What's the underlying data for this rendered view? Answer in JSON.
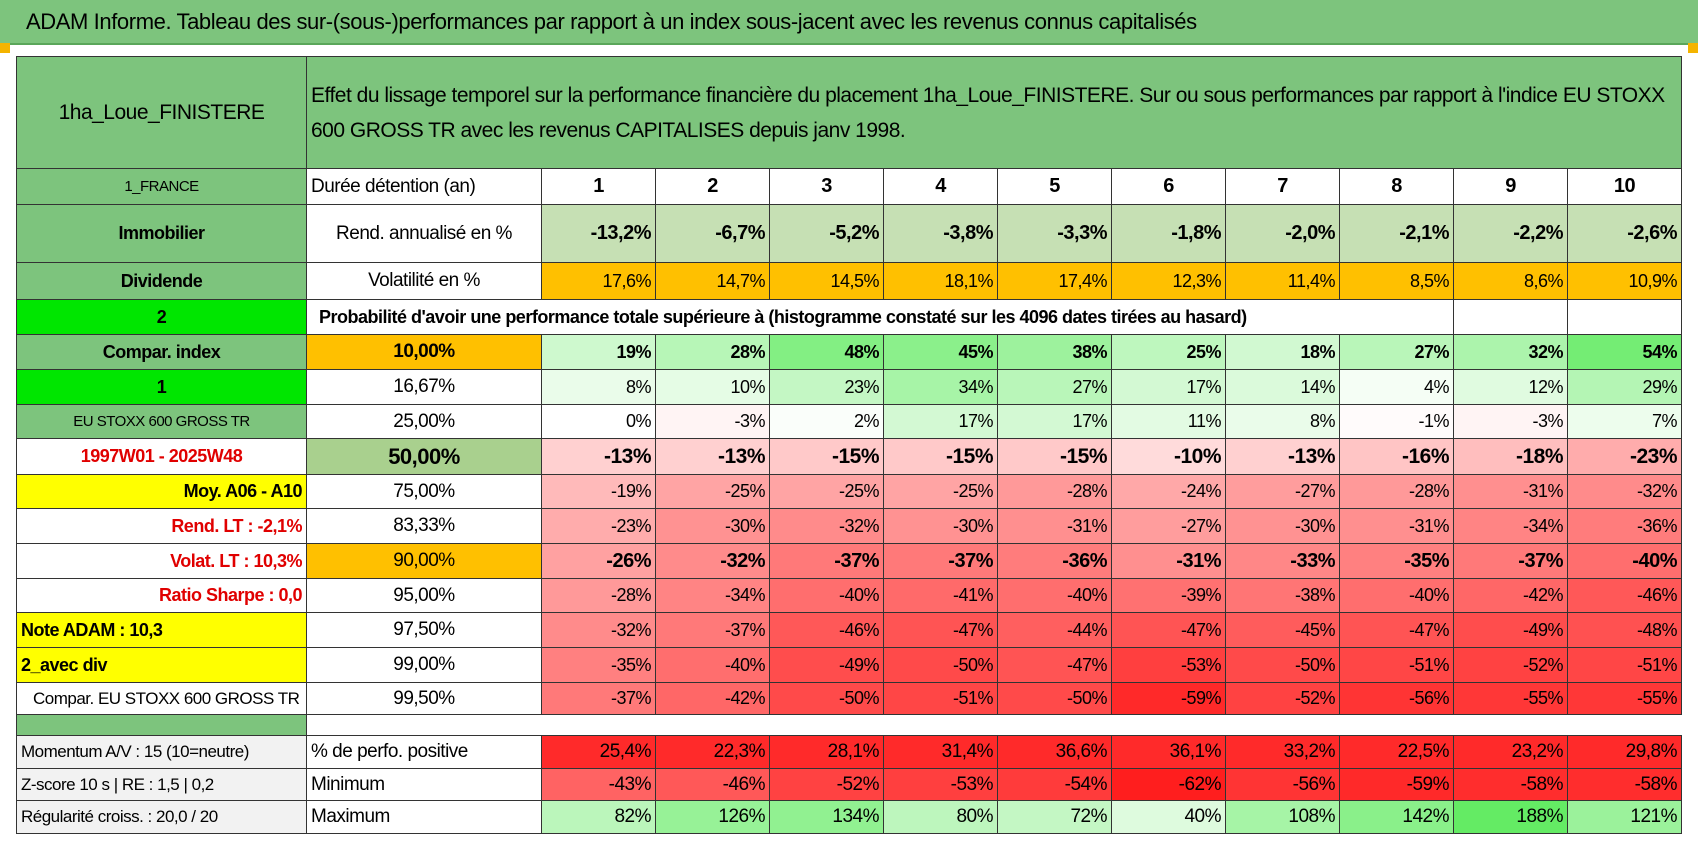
{
  "title": "ADAM Informe. Tableau des sur-(sous-)performances par rapport à un index sous-jacent avec les revenus connus capitalisés",
  "header": {
    "name": "1ha_Loue_FINISTERE",
    "description": "Effet du lissage temporel sur la performance financière du placement 1ha_Loue_FINISTERE. Sur ou sous performances par rapport à l'indice EU STOXX 600 GROSS TR avec les revenus CAPITALISES depuis janv 1998."
  },
  "rows": [
    {
      "left": "1_FRANCE",
      "label": "Durée détention (an)",
      "cells": [
        "1",
        "2",
        "3",
        "4",
        "5",
        "6",
        "7",
        "8",
        "9",
        "10"
      ]
    },
    {
      "left": "Immobilier",
      "label": "Rend. annualisé en %",
      "cells": [
        "-13,2%",
        "-6,7%",
        "-5,2%",
        "-3,8%",
        "-3,3%",
        "-1,8%",
        "-2,0%",
        "-2,1%",
        "-2,2%",
        "-2,6%"
      ]
    },
    {
      "left": "Dividende",
      "label": "Volatilité en %",
      "cells": [
        "17,6%",
        "14,7%",
        "14,5%",
        "18,1%",
        "17,4%",
        "12,3%",
        "11,4%",
        "8,5%",
        "8,6%",
        "10,9%"
      ]
    },
    {
      "left": "2",
      "text": "Probabilité d'avoir une performance totale supérieure à (histogramme constaté sur les 4096 dates tirées au hasard)"
    },
    {
      "left": "Compar. index",
      "label": "10,00%",
      "cells": [
        "19%",
        "28%",
        "48%",
        "45%",
        "38%",
        "25%",
        "18%",
        "27%",
        "32%",
        "54%"
      ]
    },
    {
      "left": "1",
      "label": "16,67%",
      "cells": [
        "8%",
        "10%",
        "23%",
        "34%",
        "27%",
        "17%",
        "14%",
        "4%",
        "12%",
        "29%"
      ]
    },
    {
      "left": "EU STOXX 600 GROSS TR",
      "label": "25,00%",
      "cells": [
        "0%",
        "-3%",
        "2%",
        "17%",
        "17%",
        "11%",
        "8%",
        "-1%",
        "-3%",
        "7%"
      ]
    },
    {
      "left": "1997W01 - 2025W48",
      "label": "50,00%",
      "cells": [
        "-13%",
        "-13%",
        "-15%",
        "-15%",
        "-15%",
        "-10%",
        "-13%",
        "-16%",
        "-18%",
        "-23%"
      ]
    },
    {
      "left": "Moy. A06 - A10",
      "label": "75,00%",
      "cells": [
        "-19%",
        "-25%",
        "-25%",
        "-25%",
        "-28%",
        "-24%",
        "-27%",
        "-28%",
        "-31%",
        "-32%"
      ]
    },
    {
      "left": "Rend. LT :   -2,1%",
      "label": "83,33%",
      "cells": [
        "-23%",
        "-30%",
        "-32%",
        "-30%",
        "-31%",
        "-27%",
        "-30%",
        "-31%",
        "-34%",
        "-36%"
      ]
    },
    {
      "left": "Volat. LT :   10,3%",
      "label": "90,00%",
      "cells": [
        "-26%",
        "-32%",
        "-37%",
        "-37%",
        "-36%",
        "-31%",
        "-33%",
        "-35%",
        "-37%",
        "-40%"
      ]
    },
    {
      "left": "Ratio Sharpe :    0,0",
      "label": "95,00%",
      "cells": [
        "-28%",
        "-34%",
        "-40%",
        "-41%",
        "-40%",
        "-39%",
        "-38%",
        "-40%",
        "-42%",
        "-46%"
      ]
    },
    {
      "left": "Note ADAM : 10,3",
      "label": "97,50%",
      "cells": [
        "-32%",
        "-37%",
        "-46%",
        "-47%",
        "-44%",
        "-47%",
        "-45%",
        "-47%",
        "-49%",
        "-48%"
      ]
    },
    {
      "left": "2_avec div",
      "label": "99,00%",
      "cells": [
        "-35%",
        "-40%",
        "-49%",
        "-50%",
        "-47%",
        "-53%",
        "-50%",
        "-51%",
        "-52%",
        "-51%"
      ]
    },
    {
      "left": "Compar. EU STOXX 600 GROSS TR",
      "label": "99,50%",
      "cells": [
        "-37%",
        "-42%",
        "-50%",
        "-51%",
        "-50%",
        "-59%",
        "-52%",
        "-56%",
        "-55%",
        "-55%"
      ]
    }
  ],
  "footer_rows": [
    {
      "left": "Momentum A/V : 15 (10=neutre)",
      "label": "% de perfo. positive",
      "cells": [
        "25,4%",
        "22,3%",
        "28,1%",
        "31,4%",
        "36,6%",
        "36,1%",
        "33,2%",
        "22,5%",
        "23,2%",
        "29,8%"
      ]
    },
    {
      "left": "Z-score 10 s | RE : 1,5 | 0,2",
      "label": "Minimum",
      "cells": [
        "-43%",
        "-46%",
        "-52%",
        "-53%",
        "-54%",
        "-62%",
        "-56%",
        "-59%",
        "-58%",
        "-58%"
      ]
    },
    {
      "left": "Régularité croiss. : 20,0 / 20",
      "label": "Maximum",
      "cells": [
        "82%",
        "126%",
        "134%",
        "80%",
        "72%",
        "40%",
        "108%",
        "142%",
        "188%",
        "121%"
      ]
    }
  ]
}
